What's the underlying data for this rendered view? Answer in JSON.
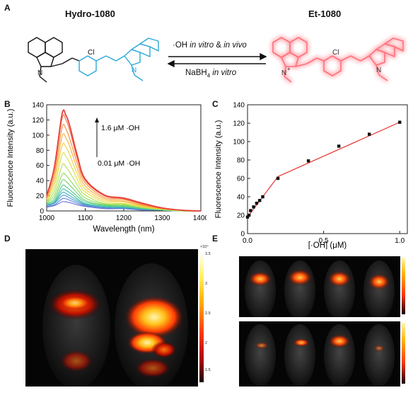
{
  "panels": {
    "A": "A",
    "B": "B",
    "C": "C",
    "D": "D",
    "E": "E"
  },
  "scheme": {
    "left_name": "Hydro-1080",
    "right_name": "Et-1080",
    "forward_prefix": "·OH ",
    "forward_italic": "in vitro",
    "forward_mid": " & ",
    "forward_italic2": "in vivo",
    "reverse_prefix": "NaBH",
    "reverse_sub": "4",
    "reverse_italic": " in vitro",
    "atom_cl": "Cl",
    "atom_n": "N",
    "atom_nplus": "N",
    "plus": "+",
    "colors": {
      "black": "#111111",
      "blue": "#2aa7d8",
      "glow": "#ff6f7a"
    }
  },
  "chartB": {
    "ylabel": "Fluorescence Intensity (a.u.)",
    "xlabel": "Wavelength (nm)",
    "xticks": [
      "1000",
      "1100",
      "1200",
      "1300",
      "1400"
    ],
    "yticks": [
      "0",
      "20",
      "40",
      "60",
      "80",
      "100",
      "120",
      "140"
    ],
    "anno_top": "1.6 μM ·OH",
    "anno_bottom": "0.01 μM ·OH"
  },
  "chartC": {
    "ylabel": "Fluorescence Intensity (a.u.)",
    "xlabel": "[·OH] (μM)",
    "xticks": [
      "0.0",
      "0.5",
      "1.0"
    ],
    "yticks": [
      "0",
      "20",
      "40",
      "60",
      "80",
      "100",
      "120",
      "140"
    ]
  },
  "panelD": {
    "cbar_exp": "×10⁴",
    "cbar_ticks": [
      "3.5",
      "3",
      "2.5",
      "2",
      "1.5"
    ]
  },
  "chart_data": [
    {
      "type": "line",
      "panel": "B",
      "x": [
        1000,
        1020,
        1040,
        1050,
        1060,
        1080,
        1100,
        1150,
        1200,
        1250,
        1300,
        1350,
        1400
      ],
      "xlim": [
        1000,
        1400
      ],
      "ylim": [
        0,
        140
      ],
      "series": [
        {
          "values": [
            20,
            58,
            128,
            126,
            112,
            72,
            42,
            21,
            17,
            10,
            4,
            1,
            0
          ]
        },
        {
          "values": [
            19,
            56,
            122,
            120,
            106,
            68,
            40,
            20,
            16,
            9,
            4,
            1,
            0
          ]
        },
        {
          "values": [
            18,
            50,
            110,
            108,
            95,
            62,
            37,
            18,
            15,
            8,
            3,
            1,
            0
          ]
        },
        {
          "values": [
            16,
            44,
            98,
            96,
            85,
            55,
            33,
            16,
            13,
            7,
            3,
            1,
            0
          ]
        },
        {
          "values": [
            15,
            38,
            86,
            84,
            74,
            48,
            29,
            14,
            12,
            6,
            3,
            1,
            0
          ]
        },
        {
          "values": [
            13,
            32,
            74,
            72,
            63,
            41,
            25,
            12,
            10,
            5,
            2,
            1,
            0
          ]
        },
        {
          "values": [
            12,
            26,
            60,
            58,
            51,
            34,
            21,
            10,
            9,
            5,
            2,
            0,
            0
          ]
        },
        {
          "values": [
            11,
            21,
            48,
            47,
            41,
            28,
            17,
            9,
            8,
            4,
            2,
            0,
            0
          ]
        },
        {
          "values": [
            10,
            17,
            40,
            39,
            34,
            23,
            14,
            8,
            7,
            4,
            2,
            0,
            0
          ]
        },
        {
          "values": [
            9,
            14,
            33,
            32,
            28,
            19,
            12,
            7,
            6,
            3,
            1,
            0,
            0
          ]
        },
        {
          "values": [
            8,
            12,
            28,
            27,
            24,
            16,
            10,
            6,
            5,
            3,
            1,
            0,
            0
          ]
        },
        {
          "values": [
            8,
            11,
            24,
            23,
            20,
            14,
            9,
            5,
            5,
            2,
            1,
            0,
            0
          ]
        },
        {
          "values": [
            7,
            10,
            20,
            20,
            17,
            12,
            8,
            5,
            4,
            2,
            1,
            0,
            0
          ]
        },
        {
          "values": [
            6,
            8,
            16,
            16,
            14,
            10,
            7,
            4,
            3,
            2,
            1,
            0,
            0
          ]
        },
        {
          "values": [
            5,
            7,
            12,
            12,
            11,
            8,
            6,
            3,
            3,
            1,
            1,
            0,
            0
          ]
        }
      ],
      "colors": [
        "#e8413c",
        "#f06a3a",
        "#f58c3b",
        "#f8ad3d",
        "#f3cd3f",
        "#d9df45",
        "#b5e04c",
        "#8fdb5a",
        "#6dd36e",
        "#52c98a",
        "#44bda6",
        "#41adbf",
        "#4a98d0",
        "#5a82d8",
        "#6a6dd8"
      ]
    },
    {
      "type": "scatter",
      "panel": "C",
      "x": [
        0.0,
        0.01,
        0.02,
        0.04,
        0.06,
        0.08,
        0.1,
        0.2,
        0.4,
        0.6,
        0.8,
        1.0
      ],
      "y": [
        18,
        20,
        25,
        29,
        33,
        36,
        40,
        60,
        79,
        95,
        108,
        121
      ],
      "fit_x": [
        0.0,
        0.2,
        1.0
      ],
      "fit_y": [
        18,
        62,
        121
      ],
      "xlim": [
        0,
        1.05
      ],
      "ylim": [
        0,
        140
      ],
      "fit_color": "#e8413c"
    }
  ]
}
